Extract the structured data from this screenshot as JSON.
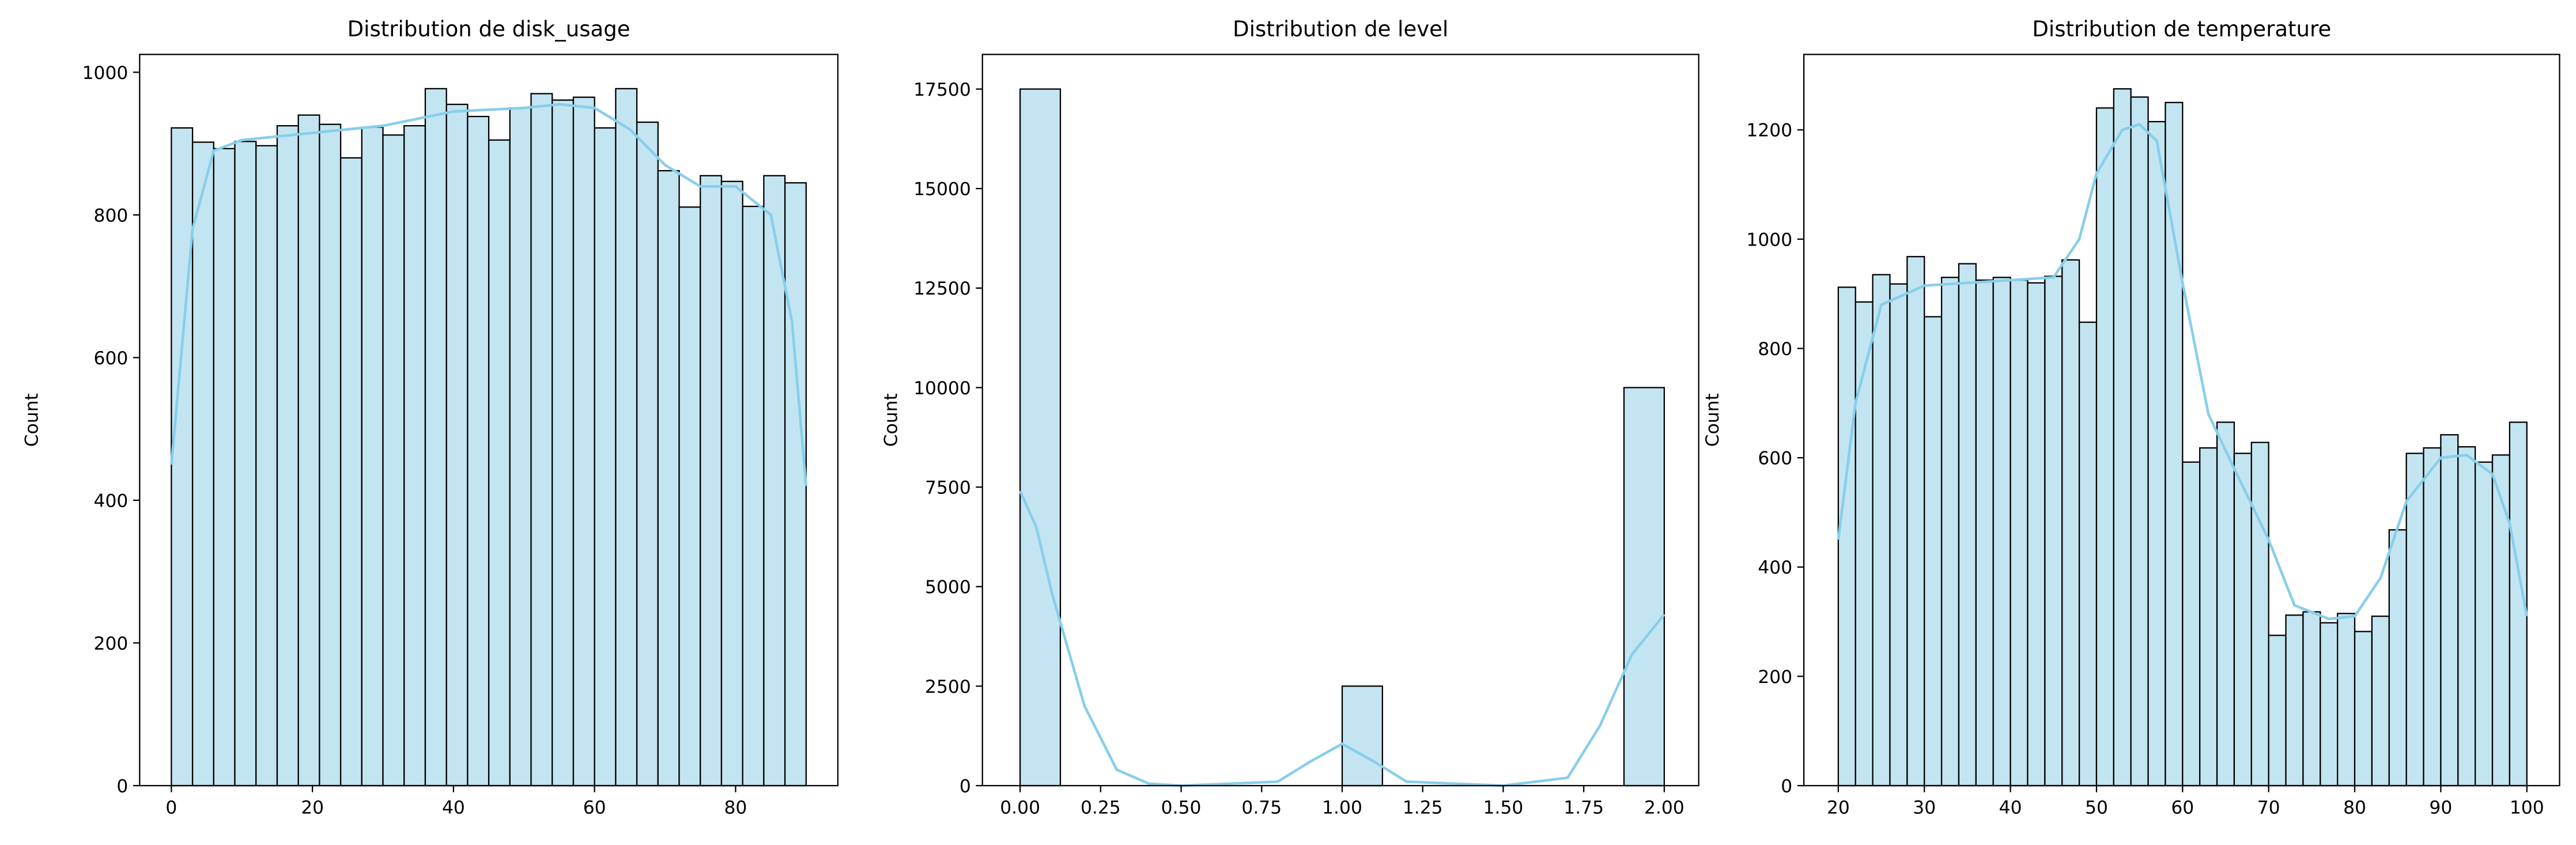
{
  "chart_data": [
    {
      "type": "histogram",
      "title": "Distribution de disk_usage",
      "ylabel": "Count",
      "bins": [
        0,
        3,
        6,
        9,
        12,
        15,
        18,
        21,
        24,
        27,
        30,
        33,
        36,
        39,
        42,
        45,
        48,
        51,
        54,
        57,
        60,
        63,
        66,
        69,
        72,
        75,
        78,
        81,
        84,
        87,
        90
      ],
      "values": [
        922,
        902,
        893,
        903,
        897,
        925,
        940,
        927,
        880,
        923,
        912,
        925,
        977,
        955,
        938,
        905,
        950,
        970,
        961,
        965,
        922,
        977,
        930,
        862,
        811,
        855,
        847,
        812,
        855,
        845
      ],
      "color": "#c3e5f1",
      "edgecolor": "#000000",
      "kde": {
        "x": [
          0,
          3,
          6,
          10,
          20,
          30,
          40,
          50,
          55,
          60,
          65,
          70,
          75,
          80,
          85,
          88,
          90
        ],
        "values": [
          450,
          780,
          890,
          905,
          915,
          925,
          945,
          950,
          955,
          950,
          920,
          870,
          840,
          840,
          800,
          650,
          420
        ],
        "color": "#87ceeb"
      },
      "xlim": [
        -4.5,
        94.5
      ],
      "xticks": [
        0,
        20,
        40,
        60,
        80
      ],
      "ylim": [
        0,
        1025
      ],
      "yticks": [
        0,
        200,
        400,
        600,
        800,
        1000
      ]
    },
    {
      "type": "histogram",
      "title": "Distribution de level",
      "ylabel": "Count",
      "bins": [
        0,
        0.125,
        0.25,
        0.375,
        0.5,
        0.625,
        0.75,
        0.875,
        1,
        1.125,
        1.25,
        1.375,
        1.5,
        1.625,
        1.75,
        1.875,
        2
      ],
      "values": [
        17500,
        0,
        0,
        0,
        0,
        0,
        0,
        0,
        2500,
        0,
        0,
        0,
        0,
        0,
        0,
        10000
      ],
      "color": "#c3e5f1",
      "edgecolor": "#000000",
      "kde": {
        "x": [
          0,
          0.05,
          0.1,
          0.2,
          0.3,
          0.4,
          0.5,
          0.8,
          0.9,
          1,
          1.1,
          1.2,
          1.5,
          1.7,
          1.8,
          1.9,
          2
        ],
        "values": [
          7400,
          6500,
          4800,
          2000,
          400,
          50,
          0,
          100,
          600,
          1050,
          600,
          100,
          0,
          200,
          1500,
          3300,
          4300
        ],
        "color": "#87ceeb"
      },
      "xlim": [
        -0.117,
        2.107
      ],
      "xticks": [
        {
          "value": 0,
          "label": "0.00"
        },
        {
          "value": 0.25,
          "label": "0.25"
        },
        {
          "value": 0.5,
          "label": "0.50"
        },
        {
          "value": 0.75,
          "label": "0.75"
        },
        {
          "value": 1,
          "label": "1.00"
        },
        {
          "value": 1.25,
          "label": "1.25"
        },
        {
          "value": 1.5,
          "label": "1.50"
        },
        {
          "value": 1.75,
          "label": "1.75"
        },
        {
          "value": 2,
          "label": "2.00"
        }
      ],
      "ylim": [
        0,
        18370
      ],
      "yticks": [
        0,
        2500,
        5000,
        7500,
        10000,
        12500,
        15000,
        17500
      ]
    },
    {
      "type": "histogram",
      "title": "Distribution de temperature",
      "ylabel": "Count",
      "bins": [
        20,
        22,
        24,
        26,
        28,
        30,
        32,
        34,
        36,
        38,
        40,
        42,
        44,
        46,
        48,
        50,
        52,
        54,
        56,
        58,
        60,
        62,
        64,
        66,
        68,
        70,
        72,
        74,
        76,
        78,
        80,
        82,
        84,
        86,
        88,
        90,
        92,
        94,
        96,
        98,
        100
      ],
      "values": [
        912,
        885,
        935,
        918,
        968,
        858,
        930,
        955,
        925,
        930,
        925,
        920,
        932,
        962,
        848,
        1240,
        1275,
        1260,
        1215,
        1250,
        592,
        618,
        665,
        608,
        628,
        275,
        312,
        318,
        298,
        315,
        282,
        310,
        468,
        608,
        618,
        642,
        620,
        592,
        605,
        665
      ],
      "color": "#c3e5f1",
      "edgecolor": "#000000",
      "kde": {
        "x": [
          20,
          22,
          25,
          30,
          40,
          45,
          48,
          50,
          53,
          55,
          57,
          60,
          63,
          66,
          70,
          73,
          77,
          80,
          83,
          86,
          90,
          93,
          96,
          98,
          100
        ],
        "values": [
          450,
          700,
          880,
          915,
          925,
          930,
          1000,
          1120,
          1200,
          1210,
          1180,
          920,
          680,
          580,
          450,
          330,
          305,
          310,
          380,
          520,
          600,
          605,
          570,
          480,
          310
        ],
        "color": "#87ceeb"
      },
      "xlim": [
        16,
        103.8
      ],
      "xticks": [
        20,
        30,
        40,
        50,
        60,
        70,
        80,
        90,
        100
      ],
      "ylim": [
        0,
        1338
      ],
      "yticks": [
        0,
        200,
        400,
        600,
        800,
        1000,
        1200
      ]
    }
  ]
}
